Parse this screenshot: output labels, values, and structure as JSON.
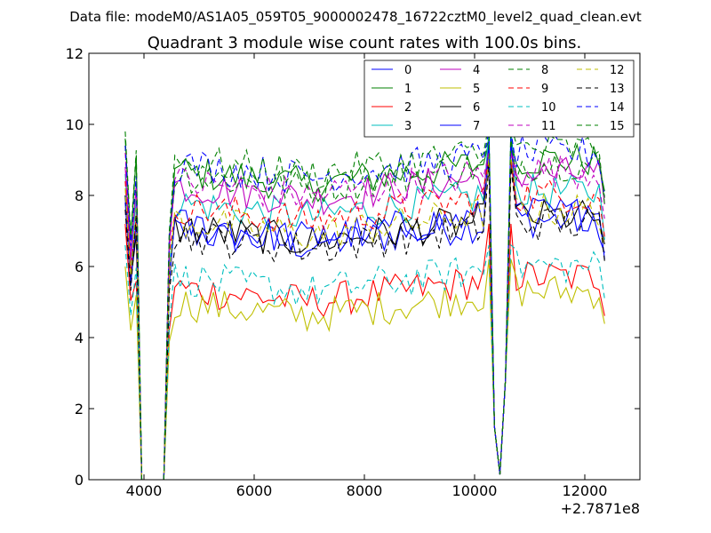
{
  "suptitle": "Data file: modeM0/AS1A05_059T05_9000002478_16722cztM0_level2_quad_clean.evt",
  "chart_data": {
    "type": "line",
    "title": "Quadrant 3 module wise count rates with 100.0s bins.",
    "xlabel": "",
    "ylabel": "",
    "x_offset_label": "+2.7871e8",
    "xlim": [
      3000,
      13000
    ],
    "ylim": [
      0,
      12
    ],
    "xticks": [
      4000,
      6000,
      8000,
      10000,
      12000
    ],
    "xtick_labels": [
      "4000",
      "6000",
      "8000",
      "10000",
      "12000"
    ],
    "yticks": [
      0,
      2,
      4,
      6,
      8,
      10,
      12
    ],
    "ytick_labels": [
      "0",
      "2",
      "4",
      "6",
      "8",
      "10",
      "12"
    ],
    "grid": false,
    "legend_location": "top-right",
    "legend_columns": 4,
    "x_start": 3660,
    "x_end": 12400,
    "bin_width": 100,
    "zero_gap": [
      3960,
      4360
    ],
    "dip_center": 10460,
    "series": [
      {
        "name": "0",
        "color": "#0000ff",
        "dash": "solid",
        "start_level": 8.0,
        "base": 7.0,
        "spike": 9.6
      },
      {
        "name": "1",
        "color": "#008000",
        "dash": "solid",
        "start_level": 9.6,
        "base": 8.7,
        "spike": 9.5
      },
      {
        "name": "2",
        "color": "#ff0000",
        "dash": "solid",
        "start_level": 7.2,
        "base": 5.4,
        "spike": 7.2
      },
      {
        "name": "3",
        "color": "#00bfbf",
        "dash": "solid",
        "start_level": 8.6,
        "base": 7.8,
        "spike": 9.8
      },
      {
        "name": "4",
        "color": "#bf00bf",
        "dash": "solid",
        "start_level": 8.8,
        "base": 8.3,
        "spike": 9.4
      },
      {
        "name": "5",
        "color": "#bfbf00",
        "dash": "solid",
        "start_level": 6.0,
        "base": 5.0,
        "spike": 6.2
      },
      {
        "name": "6",
        "color": "#000000",
        "dash": "solid",
        "start_level": 8.0,
        "base": 7.1,
        "spike": 9.0
      },
      {
        "name": "7",
        "color": "#0000ff",
        "dash": "solid",
        "start_level": 7.8,
        "base": 7.2,
        "spike": 9.5
      },
      {
        "name": "8",
        "color": "#008000",
        "dash": "dashed",
        "start_level": 9.4,
        "base": 8.6,
        "spike": 9.6
      },
      {
        "name": "9",
        "color": "#ff0000",
        "dash": "dashed",
        "start_level": 8.4,
        "base": 7.7,
        "spike": 9.0
      },
      {
        "name": "10",
        "color": "#00bfbf",
        "dash": "dashed",
        "start_level": 6.6,
        "base": 5.7,
        "spike": 6.6
      },
      {
        "name": "11",
        "color": "#bf00bf",
        "dash": "dashed",
        "start_level": 9.2,
        "base": 8.4,
        "spike": 9.2
      },
      {
        "name": "12",
        "color": "#bfbf00",
        "dash": "dashed",
        "start_level": 8.2,
        "base": 7.3,
        "spike": 9.1
      },
      {
        "name": "13",
        "color": "#000000",
        "dash": "dashed",
        "start_level": 7.6,
        "base": 6.9,
        "spike": 8.8
      },
      {
        "name": "14",
        "color": "#0000ff",
        "dash": "dashed",
        "start_level": 9.4,
        "base": 8.9,
        "spike": 9.8
      },
      {
        "name": "15",
        "color": "#008000",
        "dash": "dashed",
        "start_level": 9.8,
        "base": 9.0,
        "spike": 10.0
      }
    ]
  }
}
